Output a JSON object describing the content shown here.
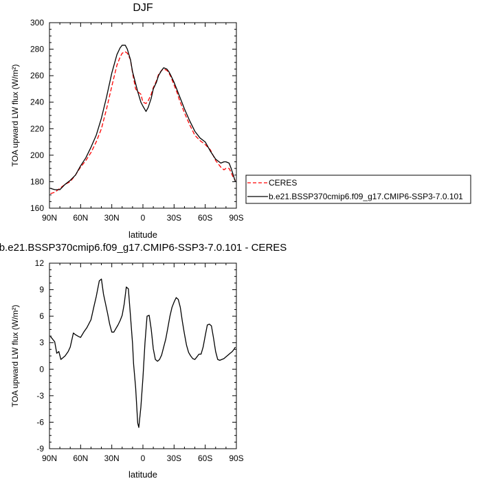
{
  "chart_data": [
    {
      "type": "line",
      "title": "DJF",
      "xlabel": "latitude",
      "ylabel": "TOA upward LW flux (W/m²)",
      "xlim": [
        90,
        -90
      ],
      "ylim": [
        160,
        300
      ],
      "xticks": [
        90,
        60,
        30,
        0,
        -30,
        -60,
        -90
      ],
      "xtick_labels": [
        "90N",
        "60N",
        "30N",
        "0",
        "30S",
        "60S",
        "90S"
      ],
      "yticks": [
        160,
        180,
        200,
        220,
        240,
        260,
        280,
        300
      ],
      "ytick_labels": [
        "160",
        "180",
        "200",
        "220",
        "240",
        "260",
        "280",
        "300"
      ],
      "legend_position": "right",
      "series": [
        {
          "name": "CERES",
          "color": "#ff0000",
          "dash": "dashed",
          "x": [
            89,
            85,
            80,
            75,
            70,
            65,
            60,
            55,
            50,
            45,
            40,
            35,
            30,
            25,
            22,
            20,
            17,
            15,
            12,
            10,
            7,
            5,
            2,
            0,
            -3,
            -5,
            -8,
            -10,
            -13,
            -15,
            -18,
            -20,
            -23,
            -25,
            -27,
            -30,
            -33,
            -35,
            -38,
            -40,
            -45,
            -50,
            -55,
            -60,
            -65,
            -70,
            -75,
            -78,
            -80,
            -83,
            -85,
            -87,
            -89
          ],
          "y": [
            171,
            172,
            175,
            178,
            180,
            185,
            191,
            196,
            202,
            210,
            220,
            235,
            252,
            268,
            274,
            277,
            278,
            277,
            272,
            262,
            250,
            248,
            246,
            240,
            239,
            241,
            246,
            251,
            256,
            261,
            264,
            265,
            264,
            262,
            259,
            253,
            247,
            242,
            236,
            232,
            223,
            215,
            211,
            208,
            204,
            196,
            191,
            189,
            190,
            190,
            187,
            183,
            181
          ]
        },
        {
          "name": "b.e21.BSSP370cmip6.f09_g17.CMIP6-SSP3-7.0.101",
          "color": "#000000",
          "dash": "solid",
          "x": [
            89,
            85,
            80,
            75,
            70,
            65,
            60,
            55,
            50,
            45,
            40,
            35,
            30,
            25,
            22,
            20,
            17,
            15,
            12,
            10,
            7,
            5,
            2,
            0,
            -3,
            -5,
            -8,
            -10,
            -13,
            -15,
            -18,
            -20,
            -23,
            -25,
            -27,
            -30,
            -33,
            -35,
            -38,
            -40,
            -45,
            -50,
            -55,
            -60,
            -65,
            -70,
            -75,
            -78,
            -80,
            -83,
            -85,
            -87,
            -89
          ],
          "y": [
            175,
            174,
            174,
            178,
            181,
            185,
            192,
            198,
            206,
            215,
            228,
            244,
            262,
            276,
            281,
            283,
            283,
            280,
            272,
            263,
            254,
            248,
            240,
            237,
            233,
            236,
            243,
            250,
            255,
            260,
            264,
            266,
            265,
            263,
            260,
            255,
            249,
            245,
            239,
            235,
            226,
            218,
            213,
            210,
            203,
            197,
            194,
            195,
            195,
            194,
            190,
            185,
            180
          ]
        }
      ]
    },
    {
      "type": "line",
      "title": "b.e21.BSSP370cmip6.f09_g17.CMIP6-SSP3-7.0.101 - CERES",
      "xlabel": "latitude",
      "ylabel": "TOA upward LW flux (W/m²)",
      "xlim": [
        90,
        -90
      ],
      "ylim": [
        -9,
        12
      ],
      "xticks": [
        90,
        60,
        30,
        0,
        -30,
        -60,
        -90
      ],
      "xtick_labels": [
        "90N",
        "60N",
        "30N",
        "0",
        "30S",
        "60S",
        "90S"
      ],
      "yticks": [
        -9,
        -6,
        -3,
        0,
        3,
        6,
        9,
        12
      ],
      "ytick_labels": [
        "-9",
        "-6",
        "-3",
        "0",
        "3",
        "6",
        "9",
        "12"
      ],
      "series": [
        {
          "color": "#000000",
          "dash": "solid",
          "x": [
            89,
            85,
            83,
            81,
            79,
            77,
            75,
            72,
            70,
            67,
            65,
            62,
            60,
            57,
            54,
            50,
            47,
            45,
            42,
            40,
            38,
            36,
            34,
            32,
            30,
            28,
            26,
            24,
            22,
            20,
            18,
            16,
            14,
            12,
            10,
            9,
            7,
            5,
            4,
            2,
            0,
            -2,
            -4,
            -6,
            -8,
            -10,
            -12,
            -14,
            -16,
            -18,
            -20,
            -22,
            -24,
            -26,
            -28,
            -30,
            -32,
            -34,
            -36,
            -38,
            -40,
            -42,
            -44,
            -46,
            -48,
            -50,
            -52,
            -54,
            -56,
            -58,
            -60,
            -62,
            -64,
            -66,
            -68,
            -70,
            -72,
            -74,
            -76,
            -78,
            -80,
            -82,
            -84,
            -86,
            -88,
            -89
          ],
          "y": [
            3.7,
            3.1,
            1.8,
            2.0,
            1.1,
            1.3,
            1.5,
            2.0,
            2.5,
            4.1,
            3.9,
            3.7,
            3.6,
            4.2,
            4.7,
            5.6,
            7.2,
            8.2,
            10.0,
            10.2,
            8.5,
            7.4,
            6.3,
            5.1,
            4.2,
            4.2,
            4.6,
            5.0,
            5.5,
            6.1,
            7.4,
            9.3,
            9.1,
            6.0,
            2.9,
            0.6,
            -2.1,
            -6.1,
            -6.6,
            -4.3,
            -1.0,
            3.0,
            6.0,
            6.1,
            4.5,
            2.3,
            1.1,
            0.9,
            1.1,
            1.6,
            2.5,
            3.4,
            4.7,
            6.0,
            7.0,
            7.6,
            8.1,
            7.9,
            7.0,
            5.4,
            4.0,
            2.7,
            1.9,
            1.5,
            1.2,
            1.1,
            1.4,
            1.7,
            1.7,
            2.5,
            3.8,
            5.0,
            5.1,
            4.9,
            3.5,
            2.0,
            1.1,
            1.0,
            1.1,
            1.2,
            1.4,
            1.6,
            1.8,
            2.0,
            2.3,
            2.5
          ]
        }
      ]
    }
  ]
}
